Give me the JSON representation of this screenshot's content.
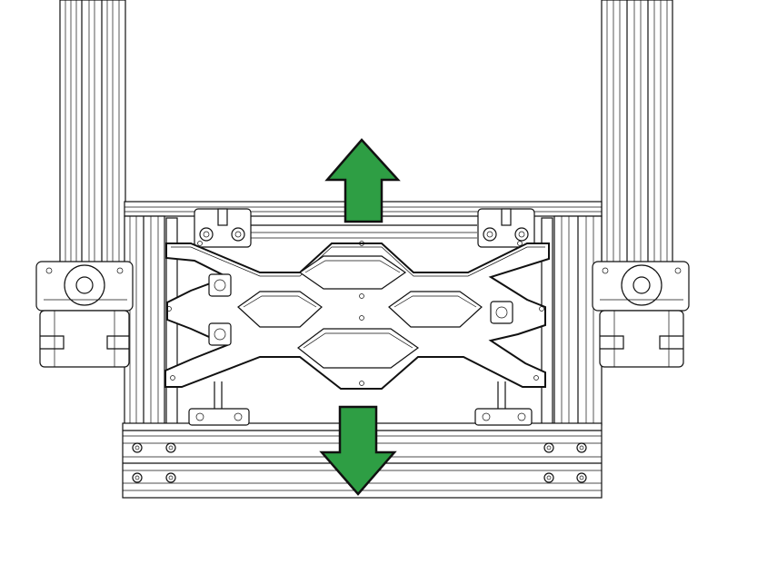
{
  "diagram": {
    "kind": "3D printer Y-axis carriage assembly (line drawing)",
    "arrow_color": "#2e9e44",
    "arrow_outline": "#111111",
    "line_color": "#111111",
    "background": "#ffffff",
    "arrows": [
      {
        "name": "arrow-up",
        "direction": "up"
      },
      {
        "name": "arrow-down",
        "direction": "down"
      }
    ]
  }
}
